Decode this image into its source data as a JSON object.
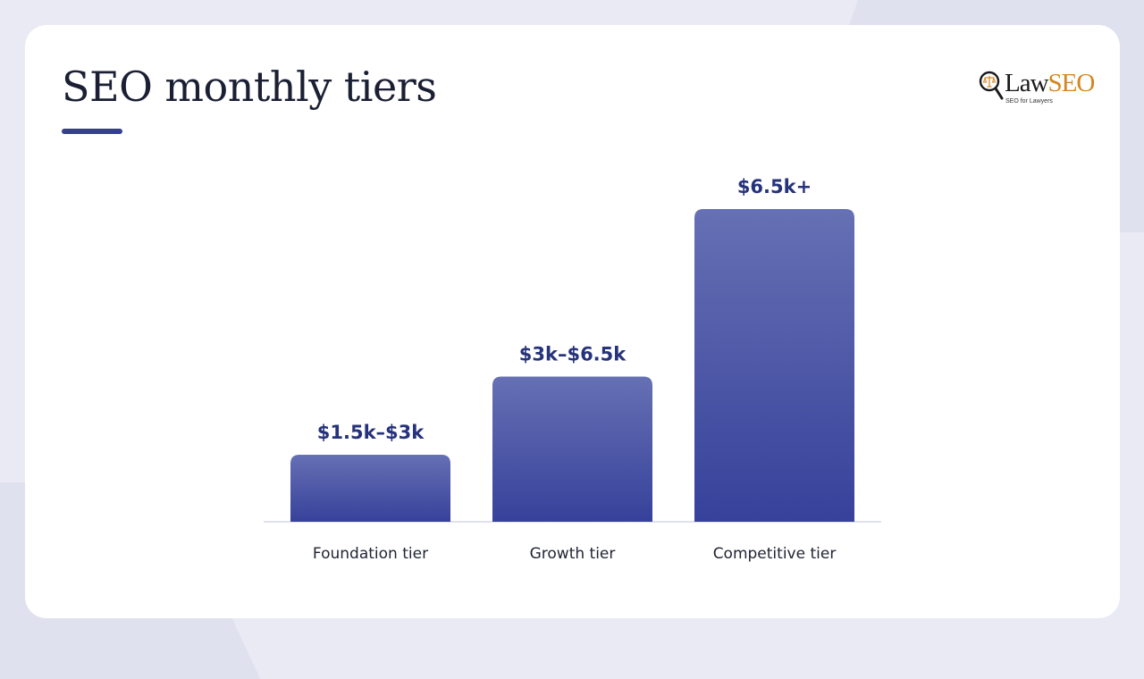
{
  "slide": {
    "title": "SEO monthly tiers"
  },
  "logo": {
    "text_law": "Law",
    "text_seo": "SEO",
    "tagline": "SEO for Lawyers",
    "icon": "magnifier-scales-icon",
    "colors": {
      "law": "#1a1a1a",
      "seo": "#d4861f"
    }
  },
  "colors": {
    "accent": "#35408f",
    "bar_top": "#6670b4",
    "bar_bottom": "#37419a",
    "value_label": "#26337a"
  },
  "chart_data": {
    "type": "bar",
    "title": "",
    "xlabel": "",
    "ylabel": "",
    "categories": [
      "Foundation tier",
      "Growth tier",
      "Competitive tier"
    ],
    "values": [
      3,
      6.5,
      14
    ],
    "value_labels": [
      "$1.5k–$3k",
      "$3k–$6.5k",
      "$6.5k+"
    ],
    "grid": false,
    "legend": "none"
  }
}
